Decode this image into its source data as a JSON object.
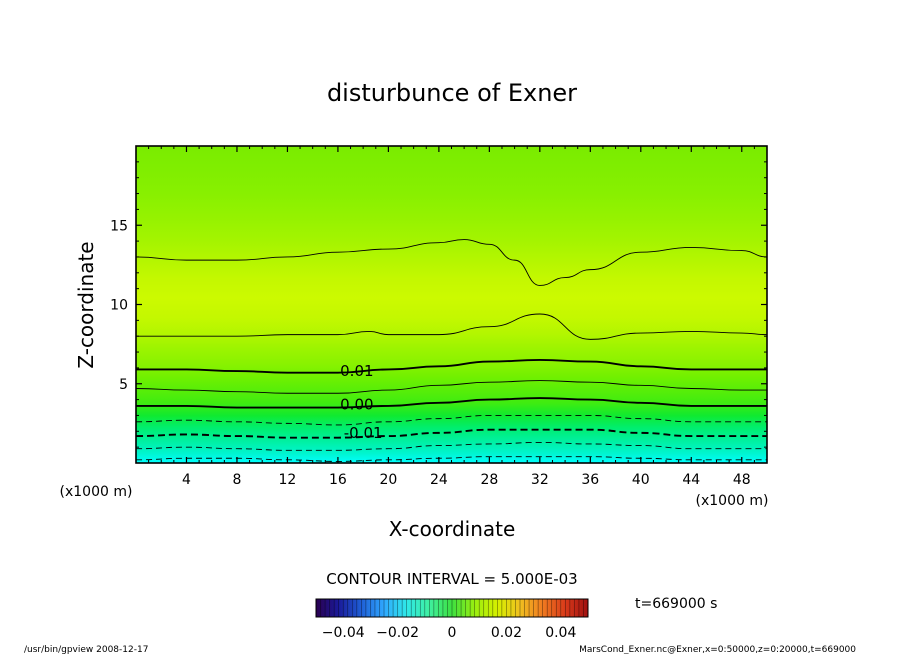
{
  "chart_data": {
    "type": "contour",
    "title": "disturbunce of Exner",
    "xlabel": "X-coordinate",
    "ylabel": "Z-coordinate",
    "x_unit": "(x1000 m)",
    "z_unit": "(x1000 m)",
    "xlim": [
      0,
      50
    ],
    "zlim": [
      0,
      20
    ],
    "x_ticks": [
      4,
      8,
      12,
      16,
      20,
      24,
      28,
      32,
      36,
      40,
      44,
      48
    ],
    "x_tick_labels": [
      "4",
      "8",
      "12",
      "16",
      "20",
      "24",
      "28",
      "32",
      "36",
      "40",
      "44",
      "48"
    ],
    "z_ticks": [
      5,
      10,
      15
    ],
    "z_tick_labels": [
      "5",
      "10",
      "15"
    ],
    "contour_interval_label": "CONTOUR INTERVAL = 5.000E-03",
    "contour_labels": [
      {
        "text": "0.01",
        "x": 17.5,
        "z": 5.8
      },
      {
        "text": "0.00",
        "x": 17.5,
        "z": 3.7
      },
      {
        "text": "-0.01",
        "x": 18.0,
        "z": 1.9
      }
    ],
    "contours": [
      {
        "level": 0.015,
        "style": "thin",
        "x": [
          0,
          4,
          8,
          12,
          16,
          18.5,
          20,
          24,
          28,
          32,
          36,
          40,
          44,
          48,
          50
        ],
        "z": [
          8.0,
          8.0,
          8.0,
          8.1,
          8.1,
          8.3,
          8.1,
          8.1,
          8.6,
          9.4,
          7.8,
          8.2,
          8.3,
          8.2,
          8.1
        ]
      },
      {
        "level": 0.015,
        "style": "thin",
        "x": [
          0,
          4,
          8,
          12,
          16,
          20,
          24,
          26,
          28,
          30,
          32,
          34,
          36,
          40,
          44,
          48,
          50
        ],
        "z": [
          13.0,
          12.8,
          12.8,
          13.0,
          13.3,
          13.5,
          13.9,
          14.1,
          13.8,
          12.8,
          11.2,
          11.7,
          12.2,
          13.3,
          13.6,
          13.4,
          13.0
        ]
      },
      {
        "level": 0.01,
        "style": "thick",
        "x": [
          0,
          4,
          8,
          12,
          16,
          20,
          24,
          28,
          32,
          36,
          40,
          44,
          48,
          50
        ],
        "z": [
          5.9,
          5.9,
          5.8,
          5.7,
          5.7,
          5.9,
          6.1,
          6.4,
          6.5,
          6.4,
          6.1,
          5.9,
          5.9,
          5.9
        ]
      },
      {
        "level": 0.005,
        "style": "thin",
        "x": [
          0,
          4,
          8,
          12,
          16,
          20,
          24,
          28,
          32,
          36,
          40,
          44,
          48,
          50
        ],
        "z": [
          4.7,
          4.6,
          4.5,
          4.4,
          4.4,
          4.6,
          4.9,
          5.1,
          5.2,
          5.1,
          4.9,
          4.7,
          4.6,
          4.6
        ]
      },
      {
        "level": 0.0,
        "style": "thick",
        "x": [
          0,
          4,
          8,
          12,
          16,
          20,
          24,
          28,
          32,
          36,
          40,
          44,
          48,
          50
        ],
        "z": [
          3.6,
          3.6,
          3.5,
          3.5,
          3.5,
          3.6,
          3.8,
          4.0,
          4.1,
          4.0,
          3.8,
          3.6,
          3.6,
          3.6
        ]
      },
      {
        "level": -0.005,
        "style": "dashed",
        "x": [
          0,
          4,
          8,
          12,
          16,
          20,
          24,
          28,
          32,
          36,
          40,
          44,
          48,
          50
        ],
        "z": [
          2.6,
          2.7,
          2.6,
          2.5,
          2.4,
          2.6,
          2.8,
          3.0,
          3.0,
          3.0,
          2.8,
          2.6,
          2.6,
          2.6
        ]
      },
      {
        "level": -0.01,
        "style": "dashed-thick",
        "x": [
          0,
          4,
          8,
          12,
          16,
          20,
          24,
          28,
          32,
          36,
          40,
          44,
          48,
          50
        ],
        "z": [
          1.7,
          1.8,
          1.7,
          1.6,
          1.6,
          1.7,
          1.9,
          2.1,
          2.1,
          2.1,
          1.9,
          1.7,
          1.7,
          1.7
        ]
      },
      {
        "level": -0.015,
        "style": "dashed",
        "x": [
          0,
          4,
          8,
          12,
          16,
          20,
          24,
          28,
          32,
          36,
          40,
          44,
          48,
          50
        ],
        "z": [
          0.9,
          1.0,
          0.9,
          0.8,
          0.8,
          0.9,
          1.1,
          1.2,
          1.3,
          1.2,
          1.1,
          0.9,
          0.9,
          0.9
        ]
      },
      {
        "level": -0.02,
        "style": "dashed",
        "x": [
          0,
          4,
          8,
          12,
          16,
          20,
          24,
          28,
          32,
          36,
          40,
          44,
          48,
          50
        ],
        "z": [
          0.2,
          0.3,
          0.3,
          0.2,
          0.1,
          0.2,
          0.3,
          0.4,
          0.4,
          0.4,
          0.3,
          0.2,
          0.2,
          0.2
        ]
      }
    ],
    "colorbar": {
      "min": -0.05,
      "max": 0.05,
      "tick_values": [
        -0.04,
        -0.02,
        0,
        0.02,
        0.04
      ],
      "tick_labels": [
        "−0.04",
        "−0.02",
        "0",
        "0.02",
        "0.04"
      ],
      "colors": [
        "#2a0050",
        "#1a1a9a",
        "#1f5fd6",
        "#2fa8ff",
        "#2fe8e8",
        "#3ff0a0",
        "#3ee040",
        "#9aee10",
        "#d6f000",
        "#f0c020",
        "#f07a20",
        "#d83a1a",
        "#a01010"
      ]
    },
    "colormap_fill": {
      "z": [
        0,
        0.6,
        1.4,
        2.2,
        3.0,
        3.8,
        4.6,
        5.4,
        6.2,
        7.2,
        8.2,
        9.2,
        10.4,
        11.6,
        12.8,
        14.2,
        15.6,
        17.0,
        18.5,
        20.0
      ],
      "colors": [
        "#00ffff",
        "#00f5d0",
        "#00f0a0",
        "#00ee70",
        "#10ea30",
        "#40ec10",
        "#58ee08",
        "#70f000",
        "#88f200",
        "#9cf400",
        "#b4f600",
        "#c4f800",
        "#ccfa00",
        "#c4f800",
        "#b4f600",
        "#a2f400",
        "#94f200",
        "#88f000",
        "#80ee00",
        "#7aec00"
      ]
    }
  },
  "time_label": "t=669000 s",
  "footer_left": "/usr/bin/gpview   2008-12-17",
  "footer_right": "MarsCond_Exner.nc@Exner,x=0:50000,z=0:20000,t=669000"
}
